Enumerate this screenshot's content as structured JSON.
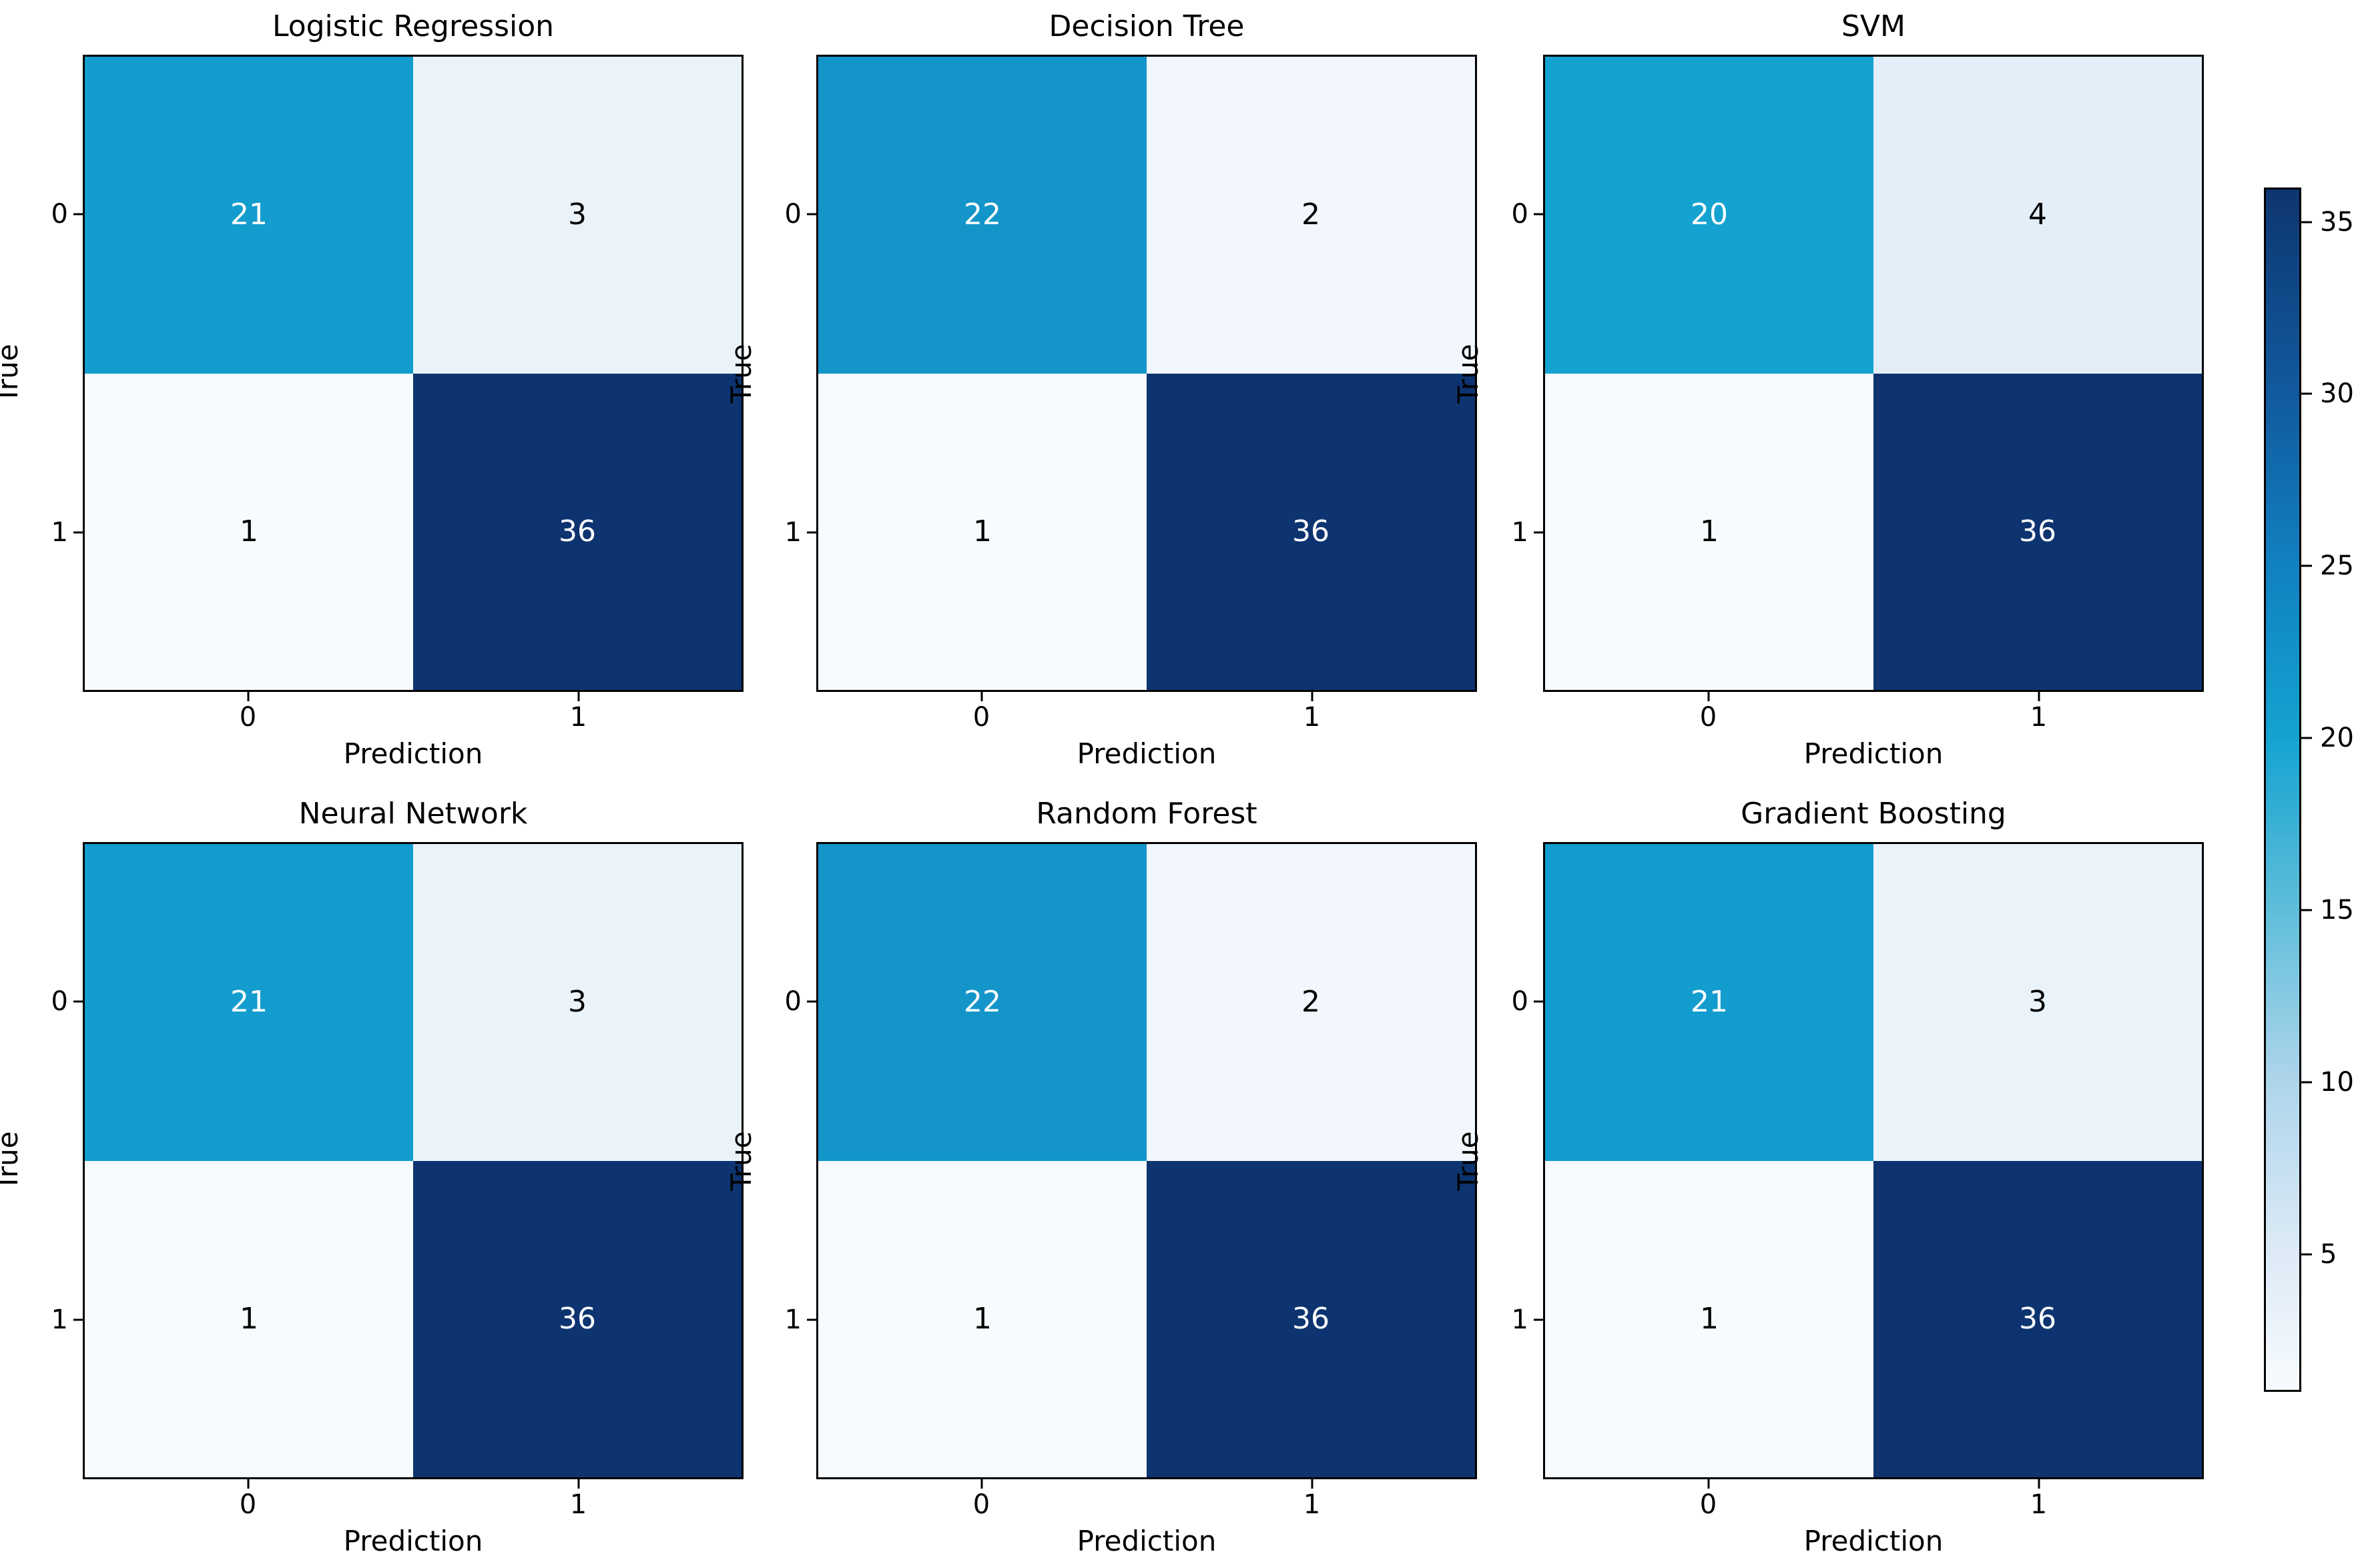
{
  "figure": {
    "kind": "confusion-matrix-comparison",
    "background": "#ffffff",
    "text_color": "#000000",
    "grid": {
      "rows": 2,
      "cols": 3
    }
  },
  "chart_data": [
    {
      "type": "heatmap",
      "title": "Logistic Regression",
      "xlabel": "Prediction",
      "ylabel": "True",
      "x_ticks": [
        "0",
        "1"
      ],
      "y_ticks": [
        "0",
        "1"
      ],
      "values": [
        [
          21,
          3
        ],
        [
          1,
          36
        ]
      ]
    },
    {
      "type": "heatmap",
      "title": "Decision Tree",
      "xlabel": "Prediction",
      "ylabel": "True",
      "x_ticks": [
        "0",
        "1"
      ],
      "y_ticks": [
        "0",
        "1"
      ],
      "values": [
        [
          22,
          2
        ],
        [
          1,
          36
        ]
      ]
    },
    {
      "type": "heatmap",
      "title": "SVM",
      "xlabel": "Prediction",
      "ylabel": "True",
      "x_ticks": [
        "0",
        "1"
      ],
      "y_ticks": [
        "0",
        "1"
      ],
      "values": [
        [
          20,
          4
        ],
        [
          1,
          36
        ]
      ]
    },
    {
      "type": "heatmap",
      "title": "Neural Network",
      "xlabel": "Prediction",
      "ylabel": "True",
      "x_ticks": [
        "0",
        "1"
      ],
      "y_ticks": [
        "0",
        "1"
      ],
      "values": [
        [
          21,
          3
        ],
        [
          1,
          36
        ]
      ]
    },
    {
      "type": "heatmap",
      "title": "Random Forest",
      "xlabel": "Prediction",
      "ylabel": "True",
      "x_ticks": [
        "0",
        "1"
      ],
      "y_ticks": [
        "0",
        "1"
      ],
      "values": [
        [
          22,
          2
        ],
        [
          1,
          36
        ]
      ]
    },
    {
      "type": "heatmap",
      "title": "Gradient Boosting",
      "xlabel": "Prediction",
      "ylabel": "True",
      "x_ticks": [
        "0",
        "1"
      ],
      "y_ticks": [
        "0",
        "1"
      ],
      "values": [
        [
          21,
          3
        ],
        [
          1,
          36
        ]
      ]
    }
  ],
  "colorbar": {
    "vmin": 1,
    "vmax": 36,
    "ticks": [
      5,
      10,
      15,
      20,
      25,
      30,
      35
    ],
    "gradient_stops": [
      {
        "v": 1,
        "color": "#f7fbfe"
      },
      {
        "v": 5,
        "color": "#ddeaf6"
      },
      {
        "v": 10,
        "color": "#aed5eb"
      },
      {
        "v": 15,
        "color": "#5fbeda"
      },
      {
        "v": 20,
        "color": "#14a3d1"
      },
      {
        "v": 25,
        "color": "#1181c0"
      },
      {
        "v": 30,
        "color": "#115a9e"
      },
      {
        "v": 35,
        "color": "#0e3c78"
      },
      {
        "v": 36,
        "color": "#0d3470"
      }
    ],
    "annotation_light_color": "#ffffff",
    "annotation_dark_color": "#000000"
  }
}
